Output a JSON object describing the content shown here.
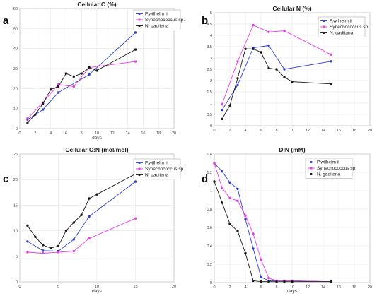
{
  "chart_data": [
    {
      "letter": "a",
      "type": "line",
      "title": "Cellular C (%)",
      "xlabel": "days",
      "ylabel": "",
      "xlim": [
        0,
        20
      ],
      "ylim": [
        0,
        60
      ],
      "xticks": [
        0,
        2,
        4,
        6,
        8,
        10,
        12,
        14,
        16,
        18,
        20
      ],
      "yticks": [
        0,
        10,
        20,
        30,
        40,
        50,
        60
      ],
      "grid": true,
      "legend_position": "top-right",
      "series": [
        {
          "name": "P.wilhelm ii",
          "color": "#2f3fd6",
          "x": [
            1,
            3,
            5,
            9,
            15
          ],
          "y": [
            4.5,
            9.5,
            18,
            27,
            48
          ]
        },
        {
          "name": "Synechococcus sp.",
          "color": "#e83ee8",
          "x": [
            1,
            3,
            5,
            7,
            9,
            15
          ],
          "y": [
            5,
            13,
            22,
            21,
            30.5,
            33.5
          ]
        },
        {
          "name": "N. gaditana",
          "color": "#1a1a1a",
          "x": [
            1,
            2,
            3,
            4,
            5,
            6,
            7,
            8,
            9,
            10,
            15
          ],
          "y": [
            3,
            7,
            12.5,
            19.5,
            21,
            27.5,
            26,
            27.5,
            30.5,
            29,
            39.5
          ]
        }
      ]
    },
    {
      "letter": "b",
      "type": "line",
      "title": "Cellular N (%)",
      "xlabel": "",
      "ylabel": "",
      "xlim": [
        0,
        20
      ],
      "ylim": [
        0,
        5
      ],
      "xticks": [
        0,
        2,
        4,
        6,
        8,
        10,
        12,
        14,
        16,
        18,
        20
      ],
      "yticks": [
        0,
        0.5,
        1,
        1.5,
        2,
        2.5,
        3,
        3.5,
        4,
        4.5,
        5
      ],
      "grid": true,
      "legend_position": "top-right",
      "series": [
        {
          "name": "P.wilhelm ii",
          "color": "#2f3fd6",
          "x": [
            1,
            3,
            5,
            7,
            9,
            15
          ],
          "y": [
            0.7,
            1.8,
            3.45,
            3.55,
            2.5,
            2.85
          ]
        },
        {
          "name": "Synechococcus sp.",
          "color": "#e83ee8",
          "x": [
            1,
            3,
            5,
            7,
            9,
            15
          ],
          "y": [
            0.95,
            2.85,
            4.45,
            4.15,
            4.2,
            3.15
          ]
        },
        {
          "name": "N. gaditana",
          "color": "#1a1a1a",
          "x": [
            1,
            2,
            3,
            4,
            5,
            6,
            7,
            8,
            9,
            10,
            15
          ],
          "y": [
            0.3,
            0.9,
            2.1,
            3.4,
            3.4,
            3.25,
            2.55,
            2.5,
            2.15,
            1.95,
            1.85
          ]
        }
      ]
    },
    {
      "letter": "c",
      "type": "line",
      "title": "Cellular C:N (mol/mol)",
      "xlabel": "days",
      "ylabel": "",
      "xlim": [
        0,
        20
      ],
      "ylim": [
        0,
        25
      ],
      "xticks": [
        0,
        5,
        10,
        15,
        20
      ],
      "yticks": [
        0,
        5,
        10,
        15,
        20,
        25
      ],
      "grid": true,
      "legend_position": "top-right",
      "series": [
        {
          "name": "P.wilhelm ii",
          "color": "#2f3fd6",
          "x": [
            1,
            3,
            5,
            7,
            9,
            15
          ],
          "y": [
            7.9,
            6.1,
            6.0,
            8.3,
            12.8,
            19.6
          ]
        },
        {
          "name": "Synechococcus sp.",
          "color": "#e83ee8",
          "x": [
            1,
            3,
            5,
            7,
            9,
            15
          ],
          "y": [
            5.8,
            5.6,
            5.8,
            6.0,
            8.5,
            12.4
          ]
        },
        {
          "name": "N. gaditana",
          "color": "#1a1a1a",
          "x": [
            1,
            2,
            3,
            4,
            5,
            6,
            7,
            8,
            9,
            10,
            15
          ],
          "y": [
            11.0,
            8.8,
            7.2,
            6.6,
            7.0,
            10.0,
            11.6,
            13.1,
            16.3,
            17.1,
            21.1
          ]
        }
      ]
    },
    {
      "letter": "d",
      "type": "line",
      "title": "DIN (mM)",
      "xlabel": "days",
      "ylabel": "",
      "xlim": [
        0,
        20
      ],
      "ylim": [
        0,
        1.4
      ],
      "xticks": [
        0,
        2,
        4,
        6,
        8,
        10,
        12,
        14,
        16,
        18,
        20
      ],
      "yticks": [
        0,
        0.2,
        0.4,
        0.6,
        0.8,
        1,
        1.2,
        1.4
      ],
      "grid": true,
      "legend_position": "top-right",
      "series": [
        {
          "name": "P.wilhelm ii",
          "color": "#2f3fd6",
          "x": [
            0,
            1,
            2,
            3,
            4,
            5,
            6,
            7,
            8,
            9,
            10,
            15
          ],
          "y": [
            1.3,
            1.21,
            1.09,
            1.02,
            0.69,
            0.37,
            0.06,
            0.02,
            0.02,
            0.02,
            0.02,
            0.01
          ]
        },
        {
          "name": "Synechococcus sp.",
          "color": "#e83ee8",
          "x": [
            0,
            1,
            2,
            3,
            4,
            5,
            6,
            7,
            8,
            9,
            10,
            15
          ],
          "y": [
            1.3,
            1.03,
            0.92,
            0.89,
            0.73,
            0.53,
            0.25,
            0.05,
            0.02,
            0.02,
            0.02,
            0.01
          ]
        },
        {
          "name": "N. gaditana",
          "color": "#1a1a1a",
          "x": [
            0,
            1,
            2,
            3,
            4,
            5,
            6,
            7,
            8,
            9,
            10,
            15
          ],
          "y": [
            1.1,
            0.87,
            0.64,
            0.56,
            0.32,
            0.02,
            0.01,
            0.01,
            0.01,
            0.01,
            0.01,
            0.01
          ]
        }
      ]
    }
  ]
}
